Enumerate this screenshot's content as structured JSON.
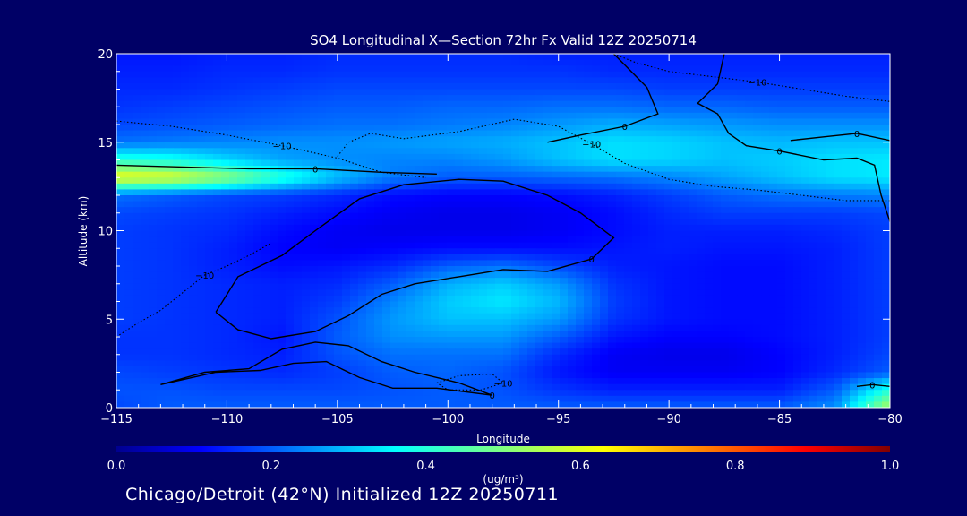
{
  "chart_data": {
    "type": "heatmap",
    "title": "SO4 Longitudinal X—Section 72hr  Fx Valid 12Z 20250714",
    "xlabel": "Longitude",
    "ylabel": "Altitude (km)",
    "xlim": [
      -115,
      -80
    ],
    "ylim": [
      0,
      20
    ],
    "xticks": [
      -115,
      -110,
      -105,
      -100,
      -95,
      -90,
      -85,
      -80
    ],
    "xtick_labels": [
      "−115",
      "−110",
      "−105",
      "−100",
      "−95",
      "−90",
      "−85",
      "−80"
    ],
    "yticks": [
      0,
      5,
      10,
      15,
      20
    ],
    "ytick_labels": [
      "0",
      "5",
      "10",
      "15",
      "20"
    ],
    "colorbar": {
      "min": 0.0,
      "max": 1.0,
      "ticks": [
        0.0,
        0.2,
        0.4,
        0.6,
        0.8,
        1.0
      ],
      "tick_labels": [
        "0.0",
        "0.2",
        "0.4",
        "0.6",
        "0.8",
        "1.0"
      ],
      "unit_label": "(ug/m³)",
      "colormap": "jet"
    },
    "field": {
      "lon": [
        -115,
        -112.5,
        -110,
        -107.5,
        -105,
        -102.5,
        -100,
        -97.5,
        -95,
        -92.5,
        -90,
        -87.5,
        -85,
        -82.5,
        -80
      ],
      "alt": [
        0,
        1,
        2,
        3,
        4,
        5,
        6,
        7,
        8,
        9,
        10,
        11,
        12,
        13,
        14,
        15,
        16,
        17,
        18,
        19,
        20
      ],
      "values": [
        [
          0.18,
          0.2,
          0.2,
          0.2,
          0.2,
          0.2,
          0.2,
          0.2,
          0.2,
          0.2,
          0.2,
          0.2,
          0.2,
          0.25,
          0.55
        ],
        [
          0.19,
          0.19,
          0.18,
          0.18,
          0.18,
          0.19,
          0.2,
          0.19,
          0.16,
          0.14,
          0.14,
          0.14,
          0.14,
          0.2,
          0.4
        ],
        [
          0.18,
          0.17,
          0.16,
          0.15,
          0.17,
          0.2,
          0.21,
          0.19,
          0.13,
          0.1,
          0.1,
          0.1,
          0.11,
          0.15,
          0.2
        ],
        [
          0.16,
          0.16,
          0.15,
          0.14,
          0.19,
          0.22,
          0.22,
          0.22,
          0.15,
          0.1,
          0.09,
          0.09,
          0.11,
          0.14,
          0.18
        ],
        [
          0.16,
          0.16,
          0.15,
          0.13,
          0.2,
          0.25,
          0.26,
          0.26,
          0.2,
          0.13,
          0.11,
          0.11,
          0.12,
          0.14,
          0.17
        ],
        [
          0.17,
          0.16,
          0.15,
          0.14,
          0.19,
          0.26,
          0.3,
          0.3,
          0.26,
          0.16,
          0.13,
          0.12,
          0.12,
          0.14,
          0.17
        ],
        [
          0.17,
          0.16,
          0.15,
          0.14,
          0.17,
          0.24,
          0.31,
          0.34,
          0.29,
          0.17,
          0.13,
          0.12,
          0.12,
          0.14,
          0.17
        ],
        [
          0.17,
          0.16,
          0.15,
          0.14,
          0.15,
          0.2,
          0.28,
          0.31,
          0.26,
          0.16,
          0.13,
          0.12,
          0.12,
          0.14,
          0.17
        ],
        [
          0.17,
          0.16,
          0.14,
          0.12,
          0.13,
          0.15,
          0.2,
          0.22,
          0.18,
          0.14,
          0.13,
          0.12,
          0.12,
          0.14,
          0.17
        ],
        [
          0.17,
          0.16,
          0.14,
          0.11,
          0.1,
          0.11,
          0.12,
          0.12,
          0.12,
          0.13,
          0.14,
          0.13,
          0.13,
          0.14,
          0.17
        ],
        [
          0.17,
          0.16,
          0.15,
          0.12,
          0.1,
          0.09,
          0.09,
          0.09,
          0.1,
          0.12,
          0.14,
          0.14,
          0.14,
          0.15,
          0.17
        ],
        [
          0.18,
          0.17,
          0.16,
          0.14,
          0.12,
          0.1,
          0.09,
          0.09,
          0.1,
          0.12,
          0.15,
          0.17,
          0.17,
          0.17,
          0.18
        ],
        [
          0.22,
          0.2,
          0.18,
          0.17,
          0.15,
          0.12,
          0.11,
          0.11,
          0.12,
          0.14,
          0.17,
          0.2,
          0.22,
          0.23,
          0.24
        ],
        [
          0.62,
          0.6,
          0.52,
          0.4,
          0.3,
          0.23,
          0.2,
          0.2,
          0.21,
          0.22,
          0.24,
          0.27,
          0.3,
          0.33,
          0.34
        ],
        [
          0.4,
          0.38,
          0.32,
          0.27,
          0.25,
          0.24,
          0.24,
          0.26,
          0.3,
          0.33,
          0.32,
          0.3,
          0.31,
          0.33,
          0.34
        ],
        [
          0.22,
          0.23,
          0.24,
          0.25,
          0.25,
          0.26,
          0.27,
          0.28,
          0.3,
          0.33,
          0.32,
          0.3,
          0.29,
          0.3,
          0.3
        ],
        [
          0.18,
          0.19,
          0.2,
          0.21,
          0.22,
          0.22,
          0.23,
          0.24,
          0.26,
          0.28,
          0.27,
          0.26,
          0.25,
          0.25,
          0.25
        ],
        [
          0.16,
          0.17,
          0.18,
          0.19,
          0.2,
          0.2,
          0.21,
          0.21,
          0.22,
          0.22,
          0.21,
          0.21,
          0.2,
          0.2,
          0.2
        ],
        [
          0.15,
          0.15,
          0.16,
          0.17,
          0.18,
          0.18,
          0.18,
          0.18,
          0.18,
          0.18,
          0.17,
          0.17,
          0.17,
          0.17,
          0.17
        ],
        [
          0.14,
          0.14,
          0.15,
          0.15,
          0.16,
          0.16,
          0.16,
          0.16,
          0.16,
          0.15,
          0.15,
          0.15,
          0.15,
          0.15,
          0.15
        ],
        [
          0.13,
          0.13,
          0.14,
          0.14,
          0.15,
          0.15,
          0.15,
          0.15,
          0.14,
          0.14,
          0.14,
          0.14,
          0.14,
          0.14,
          0.14
        ]
      ]
    },
    "contours": [
      {
        "label": "0",
        "style": "solid",
        "points": [
          [
            -110.5,
            5.4
          ],
          [
            -109.5,
            7.4
          ],
          [
            -107.5,
            8.6
          ],
          [
            -106,
            10
          ],
          [
            -104,
            11.8
          ],
          [
            -102,
            12.6
          ],
          [
            -99.5,
            12.9
          ],
          [
            -97.5,
            12.8
          ],
          [
            -95.5,
            12
          ],
          [
            -94,
            11
          ],
          [
            -92.5,
            9.6
          ],
          [
            -93.5,
            8.4
          ],
          [
            -95.5,
            7.7
          ],
          [
            -97.5,
            7.8
          ],
          [
            -99.5,
            7.4
          ],
          [
            -101.5,
            7.0
          ],
          [
            -103,
            6.4
          ],
          [
            -104.5,
            5.2
          ],
          [
            -106,
            4.3
          ],
          [
            -108,
            3.9
          ],
          [
            -109.5,
            4.4
          ],
          [
            -110.5,
            5.4
          ]
        ]
      },
      {
        "label": "0",
        "style": "solid",
        "points": [
          [
            -113,
            1.3
          ],
          [
            -111,
            2.0
          ],
          [
            -109,
            2.2
          ],
          [
            -107.5,
            3.3
          ],
          [
            -106,
            3.7
          ],
          [
            -104.5,
            3.5
          ],
          [
            -103,
            2.6
          ],
          [
            -101.5,
            2.0
          ],
          [
            -99.5,
            1.4
          ],
          [
            -98,
            0.7
          ],
          [
            -100.5,
            1.1
          ],
          [
            -102.5,
            1.1
          ],
          [
            -104,
            1.7
          ],
          [
            -105.5,
            2.6
          ],
          [
            -107,
            2.5
          ],
          [
            -108.5,
            2.1
          ],
          [
            -110.5,
            2.0
          ],
          [
            -113,
            1.3
          ]
        ]
      },
      {
        "label": "0",
        "style": "solid",
        "points": [
          [
            -87.5,
            20
          ],
          [
            -87.8,
            18.3
          ],
          [
            -88.7,
            17.2
          ],
          [
            -87.8,
            16.6
          ],
          [
            -87.3,
            15.5
          ],
          [
            -86.5,
            14.8
          ],
          [
            -85,
            14.5
          ],
          [
            -83,
            14.0
          ],
          [
            -81.5,
            14.1
          ],
          [
            -80.7,
            13.7
          ],
          [
            -80.4,
            12
          ],
          [
            -80,
            10.5
          ]
        ]
      },
      {
        "label": "0",
        "style": "solid",
        "points": [
          [
            -84.5,
            15.1
          ],
          [
            -83,
            15.3
          ],
          [
            -81.5,
            15.5
          ],
          [
            -80,
            15.1
          ]
        ]
      },
      {
        "label": "0",
        "style": "solid",
        "points": [
          [
            -92.5,
            20
          ],
          [
            -91,
            18.1
          ],
          [
            -90.5,
            16.6
          ],
          [
            -92,
            15.9
          ],
          [
            -94,
            15.4
          ],
          [
            -95.5,
            15.0
          ]
        ]
      },
      {
        "label": "0",
        "style": "solid",
        "points": [
          [
            -115,
            13.7
          ],
          [
            -112,
            13.6
          ],
          [
            -109,
            13.5
          ],
          [
            -106,
            13.5
          ],
          [
            -103,
            13.3
          ],
          [
            -100.5,
            13.2
          ]
        ]
      },
      {
        "label": "0",
        "style": "solid",
        "points": [
          [
            -81.5,
            1.2
          ],
          [
            -80.8,
            1.3
          ],
          [
            -80,
            1.2
          ]
        ]
      },
      {
        "label": "−10",
        "style": "dotted",
        "points": [
          [
            -115,
            16.2
          ],
          [
            -112.5,
            15.9
          ],
          [
            -110,
            15.4
          ],
          [
            -107.5,
            14.8
          ],
          [
            -105,
            14.1
          ],
          [
            -103,
            13.3
          ],
          [
            -101,
            13.0
          ]
        ]
      },
      {
        "label": "−10",
        "style": "dotted",
        "points": [
          [
            -105,
            14.2
          ],
          [
            -104.5,
            15.0
          ],
          [
            -103.5,
            15.5
          ],
          [
            -102,
            15.2
          ],
          [
            -99.5,
            15.6
          ],
          [
            -97,
            16.3
          ],
          [
            -95,
            15.9
          ],
          [
            -93.5,
            14.9
          ],
          [
            -92,
            13.8
          ],
          [
            -90,
            12.9
          ],
          [
            -88,
            12.5
          ],
          [
            -86,
            12.3
          ],
          [
            -84,
            12.0
          ],
          [
            -82,
            11.7
          ],
          [
            -80,
            11.7
          ]
        ]
      },
      {
        "label": "−10",
        "style": "dotted",
        "points": [
          [
            -115,
            4.0
          ],
          [
            -114,
            4.8
          ],
          [
            -113,
            5.5
          ],
          [
            -112,
            6.5
          ],
          [
            -111,
            7.5
          ],
          [
            -110,
            8.0
          ],
          [
            -109,
            8.6
          ],
          [
            -108,
            9.3
          ]
        ]
      },
      {
        "label": "−10",
        "style": "dotted",
        "points": [
          [
            -100.5,
            1.4
          ],
          [
            -99.5,
            1.8
          ],
          [
            -98,
            1.9
          ],
          [
            -97.5,
            1.4
          ],
          [
            -98.5,
            1.0
          ],
          [
            -100,
            1.0
          ],
          [
            -100.5,
            1.4
          ]
        ]
      },
      {
        "label": "−10",
        "style": "dotted",
        "points": [
          [
            -92.5,
            20
          ],
          [
            -91.5,
            19.5
          ],
          [
            -90,
            19.0
          ],
          [
            -88,
            18.7
          ],
          [
            -86,
            18.4
          ],
          [
            -84,
            18.0
          ],
          [
            -82,
            17.6
          ],
          [
            -80,
            17.3
          ]
        ]
      }
    ]
  },
  "footer_text": "Chicago/Detroit (42°N) Initialized 12Z 20250711"
}
